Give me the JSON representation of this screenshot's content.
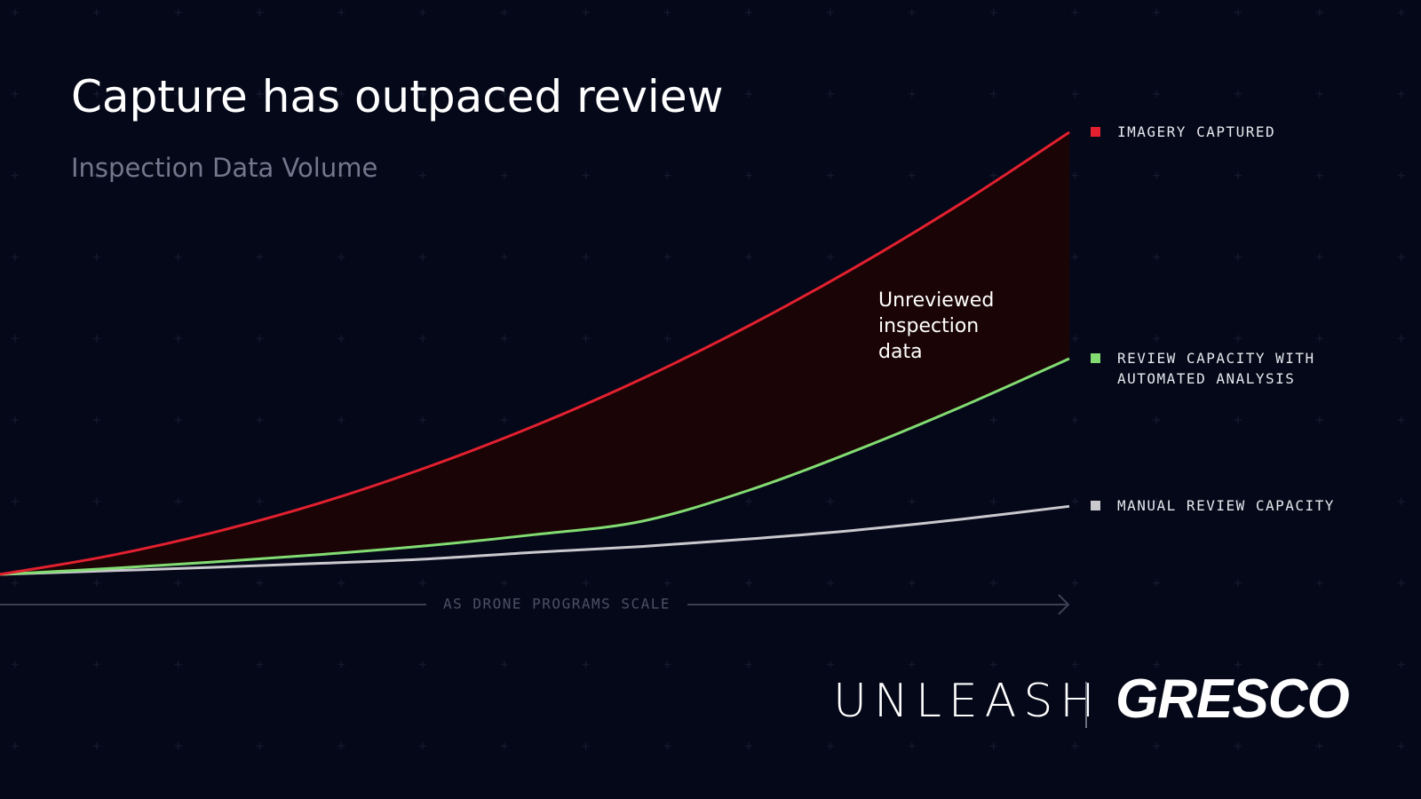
{
  "chart_data": {
    "type": "line",
    "title": "Capture has outpaced review",
    "subtitle": "Inspection Data Volume",
    "x_axis_label": "AS DRONE PROGRAMS SCALE",
    "annotation": "Unreviewed inspection data",
    "x": [
      0,
      10,
      20,
      30,
      40,
      50,
      60,
      70,
      80,
      90,
      100
    ],
    "xlim": [
      0,
      100
    ],
    "ylim": [
      0,
      100
    ],
    "fill_between": [
      "IMAGERY CAPTURED",
      "REVIEW CAPACITY WITH AUTOMATED ANALYSIS"
    ],
    "fill_color": "#1a0406",
    "series": [
      {
        "name": "IMAGERY CAPTURED",
        "color": "#e3202f",
        "values": [
          0,
          4.1,
          9.5,
          16.2,
          24.3,
          33.6,
          44.2,
          56.2,
          69.5,
          84.1,
          100
        ]
      },
      {
        "name": "REVIEW CAPACITY WITH AUTOMATED ANALYSIS",
        "color": "#82dc72",
        "values": [
          0,
          1.3,
          2.8,
          4.5,
          6.5,
          9,
          12,
          19,
          28,
          38,
          48.8
        ]
      },
      {
        "name": "MANUAL REVIEW CAPACITY",
        "color": "#c9c9ce",
        "values": [
          0,
          0.8,
          1.6,
          2.5,
          3.5,
          5,
          6.3,
          8,
          10,
          12.5,
          15.4
        ]
      }
    ]
  },
  "branding": {
    "logos": [
      "UNLEASH",
      "GRESCO"
    ]
  }
}
